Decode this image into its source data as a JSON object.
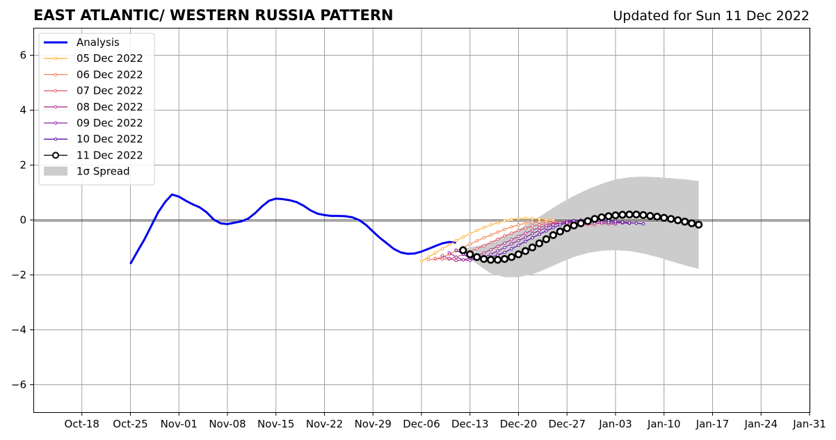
{
  "title_left": "EAST ATLANTIC/ WESTERN RUSSIA PATTERN",
  "title_right": "Updated for Sun 11 Dec 2022",
  "chart_data": {
    "type": "line",
    "x_axis": {
      "type": "date",
      "range": [
        "2022-10-11",
        "2023-01-31"
      ],
      "ticks": [
        "2022-10-18",
        "2022-10-25",
        "2022-11-01",
        "2022-11-08",
        "2022-11-15",
        "2022-11-22",
        "2022-11-29",
        "2022-12-06",
        "2022-12-13",
        "2022-12-20",
        "2022-12-27",
        "2023-01-03",
        "2023-01-10",
        "2023-01-17",
        "2023-01-24",
        "2023-01-31"
      ],
      "tick_labels": [
        "Oct-18",
        "Oct-25",
        "Nov-01",
        "Nov-08",
        "Nov-15",
        "Nov-22",
        "Nov-29",
        "Dec-06",
        "Dec-13",
        "Dec-20",
        "Dec-27",
        "Jan-03",
        "Jan-10",
        "Jan-17",
        "Jan-24",
        "Jan-31"
      ]
    },
    "y_axis": {
      "range": [
        -7,
        7
      ],
      "ticks": [
        6,
        4,
        2,
        0,
        -2,
        -4,
        -6
      ],
      "tick_labels": [
        "6",
        "4",
        "2",
        "0",
        "−2",
        "−4",
        "−6"
      ]
    },
    "grid": true,
    "zero_line": true,
    "legend_position": "upper-left",
    "analysis": {
      "name": "Analysis",
      "color": "#0000ee",
      "points": [
        [
          "2022-10-25",
          -1.6
        ],
        [
          "2022-10-26",
          -1.15
        ],
        [
          "2022-10-27",
          -0.72
        ],
        [
          "2022-10-28",
          -0.22
        ],
        [
          "2022-10-29",
          0.28
        ],
        [
          "2022-10-30",
          0.65
        ],
        [
          "2022-10-31",
          0.93
        ],
        [
          "2022-11-01",
          0.85
        ],
        [
          "2022-11-02",
          0.7
        ],
        [
          "2022-11-03",
          0.57
        ],
        [
          "2022-11-04",
          0.46
        ],
        [
          "2022-11-05",
          0.28
        ],
        [
          "2022-11-06",
          0.02
        ],
        [
          "2022-11-07",
          -0.12
        ],
        [
          "2022-11-08",
          -0.15
        ],
        [
          "2022-11-09",
          -0.1
        ],
        [
          "2022-11-10",
          -0.05
        ],
        [
          "2022-11-11",
          0.05
        ],
        [
          "2022-11-12",
          0.25
        ],
        [
          "2022-11-13",
          0.5
        ],
        [
          "2022-11-14",
          0.7
        ],
        [
          "2022-11-15",
          0.78
        ],
        [
          "2022-11-16",
          0.76
        ],
        [
          "2022-11-17",
          0.72
        ],
        [
          "2022-11-18",
          0.65
        ],
        [
          "2022-11-19",
          0.52
        ],
        [
          "2022-11-20",
          0.35
        ],
        [
          "2022-11-21",
          0.23
        ],
        [
          "2022-11-22",
          0.18
        ],
        [
          "2022-11-23",
          0.15
        ],
        [
          "2022-11-24",
          0.15
        ],
        [
          "2022-11-25",
          0.14
        ],
        [
          "2022-11-26",
          0.1
        ],
        [
          "2022-11-27",
          0.0
        ],
        [
          "2022-11-28",
          -0.18
        ],
        [
          "2022-11-29",
          -0.42
        ],
        [
          "2022-11-30",
          -0.65
        ],
        [
          "2022-12-01",
          -0.85
        ],
        [
          "2022-12-02",
          -1.05
        ],
        [
          "2022-12-03",
          -1.18
        ],
        [
          "2022-12-04",
          -1.23
        ],
        [
          "2022-12-05",
          -1.22
        ],
        [
          "2022-12-06",
          -1.15
        ],
        [
          "2022-12-07",
          -1.05
        ],
        [
          "2022-12-08",
          -0.95
        ],
        [
          "2022-12-09",
          -0.85
        ],
        [
          "2022-12-10",
          -0.8
        ],
        [
          "2022-12-11",
          -0.82
        ]
      ]
    },
    "forecasts": [
      {
        "name": "05 Dec 2022",
        "color": "#fbb33c",
        "start": "2022-12-06",
        "values": [
          -1.5,
          -1.35,
          -1.2,
          -1.05,
          -0.9,
          -0.75,
          -0.62,
          -0.5,
          -0.38,
          -0.28,
          -0.18,
          -0.1,
          -0.02,
          0.02,
          0.05,
          0.06,
          0.05,
          0.03,
          0.01,
          0.0
        ]
      },
      {
        "name": "06 Dec 2022",
        "color": "#f4804f",
        "start": "2022-12-07",
        "values": [
          -1.45,
          -1.42,
          -1.35,
          -1.25,
          -1.12,
          -1.0,
          -0.88,
          -0.76,
          -0.65,
          -0.55,
          -0.44,
          -0.34,
          -0.25,
          -0.18,
          -0.12,
          -0.08,
          -0.06,
          -0.06,
          -0.07,
          -0.08,
          -0.09,
          -0.1
        ]
      },
      {
        "name": "07 Dec 2022",
        "color": "#e15a6a",
        "start": "2022-12-08",
        "values": [
          -1.4,
          -1.42,
          -1.42,
          -1.35,
          -1.25,
          -1.15,
          -1.05,
          -0.94,
          -0.82,
          -0.7,
          -0.58,
          -0.48,
          -0.38,
          -0.3,
          -0.22,
          -0.17,
          -0.13,
          -0.12,
          -0.13,
          -0.14,
          -0.15,
          -0.16,
          -0.17,
          -0.18
        ]
      },
      {
        "name": "08 Dec 2022",
        "color": "#b13887",
        "start": "2022-12-09",
        "values": [
          -1.3,
          -1.4,
          -1.48,
          -1.45,
          -1.38,
          -1.3,
          -1.2,
          -1.08,
          -0.96,
          -0.84,
          -0.72,
          -0.6,
          -0.48,
          -0.37,
          -0.28,
          -0.2,
          -0.14,
          -0.1,
          -0.08,
          -0.08,
          -0.09,
          -0.1,
          -0.12,
          -0.13,
          -0.14,
          -0.15
        ]
      },
      {
        "name": "09 Dec 2022",
        "color": "#8d1ea0",
        "start": "2022-12-10",
        "values": [
          -1.2,
          -1.35,
          -1.45,
          -1.47,
          -1.42,
          -1.35,
          -1.25,
          -1.13,
          -1.0,
          -0.87,
          -0.75,
          -0.63,
          -0.5,
          -0.38,
          -0.28,
          -0.18,
          -0.1,
          -0.05,
          -0.02,
          -0.02,
          -0.03,
          -0.05,
          -0.07,
          -0.09,
          -0.1,
          -0.11,
          -0.12
        ]
      },
      {
        "name": "10 Dec 2022",
        "color": "#5a0ca3",
        "start": "2022-12-11",
        "values": [
          -1.1,
          -1.25,
          -1.38,
          -1.42,
          -1.4,
          -1.35,
          -1.28,
          -1.18,
          -1.05,
          -0.92,
          -0.78,
          -0.65,
          -0.52,
          -0.4,
          -0.28,
          -0.18,
          -0.1,
          -0.03,
          0.0,
          0.02,
          0.02,
          0.0,
          -0.02,
          -0.05,
          -0.08,
          -0.1,
          -0.12,
          -0.14
        ]
      },
      {
        "name": "11 Dec 2022",
        "color": "#000000",
        "marker_fill": "#ffffff",
        "start": "2022-12-12",
        "values": [
          -1.1,
          -1.25,
          -1.35,
          -1.42,
          -1.45,
          -1.45,
          -1.42,
          -1.35,
          -1.25,
          -1.13,
          -1.0,
          -0.85,
          -0.7,
          -0.55,
          -0.42,
          -0.3,
          -0.2,
          -0.12,
          -0.04,
          0.04,
          0.1,
          0.14,
          0.17,
          0.19,
          0.2,
          0.2,
          0.18,
          0.15,
          0.12,
          0.08,
          0.04,
          -0.01,
          -0.06,
          -0.12,
          -0.17
        ]
      }
    ],
    "spread": {
      "name": "1σ Spread",
      "color": "#cccccc",
      "dates": [
        "2022-12-12",
        "2022-12-14",
        "2022-12-16",
        "2022-12-18",
        "2022-12-20",
        "2022-12-22",
        "2022-12-24",
        "2022-12-26",
        "2022-12-28",
        "2022-12-30",
        "2023-01-01",
        "2023-01-03",
        "2023-01-05",
        "2023-01-07",
        "2023-01-09",
        "2023-01-11",
        "2023-01-13",
        "2023-01-15"
      ],
      "upper": [
        -1.05,
        -0.95,
        -0.82,
        -0.6,
        -0.35,
        -0.05,
        0.28,
        0.6,
        0.88,
        1.12,
        1.32,
        1.48,
        1.56,
        1.58,
        1.56,
        1.52,
        1.48,
        1.42
      ],
      "lower": [
        -1.2,
        -1.6,
        -1.95,
        -2.08,
        -2.08,
        -1.98,
        -1.78,
        -1.55,
        -1.35,
        -1.2,
        -1.12,
        -1.1,
        -1.13,
        -1.22,
        -1.35,
        -1.5,
        -1.65,
        -1.78
      ]
    },
    "legend": [
      "Analysis",
      "05 Dec 2022",
      "06 Dec 2022",
      "07 Dec 2022",
      "08 Dec 2022",
      "09 Dec 2022",
      "10 Dec 2022",
      "11 Dec 2022",
      "1σ Spread"
    ]
  }
}
